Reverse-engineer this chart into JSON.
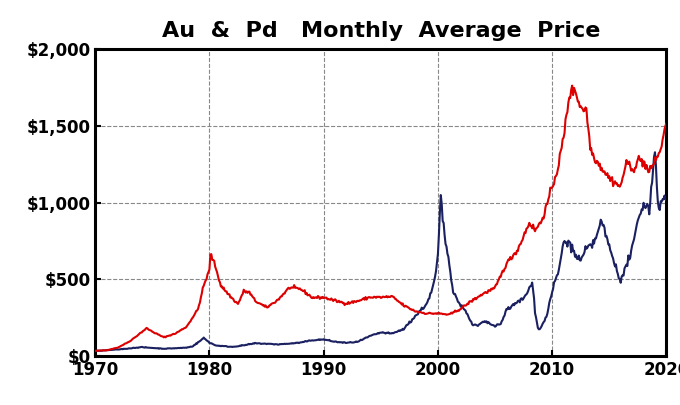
{
  "title": "Au  &  Pd   Monthly  Average  Price",
  "title_fontsize": 16,
  "title_fontweight": "bold",
  "xlim": [
    1970,
    2020
  ],
  "ylim": [
    0,
    2000
  ],
  "yticks": [
    0,
    500,
    1000,
    1500,
    2000
  ],
  "yticklabels": [
    "$0",
    "$500",
    "$1,000",
    "$1,500",
    "$2,000"
  ],
  "xticks": [
    1970,
    1980,
    1990,
    2000,
    2010,
    2020
  ],
  "xticklabels": [
    "1970",
    "1980",
    "1990",
    "2000",
    "2010",
    "2020"
  ],
  "grid_color": "#888888",
  "grid_style": "--",
  "gold_color": "#dd0000",
  "palladium_color": "#1a2060",
  "linewidth": 1.5,
  "background_color": "#ffffff",
  "tick_fontsize": 12,
  "tick_fontweight": "bold",
  "figsize": [
    6.8,
    4.05
  ],
  "dpi": 100
}
